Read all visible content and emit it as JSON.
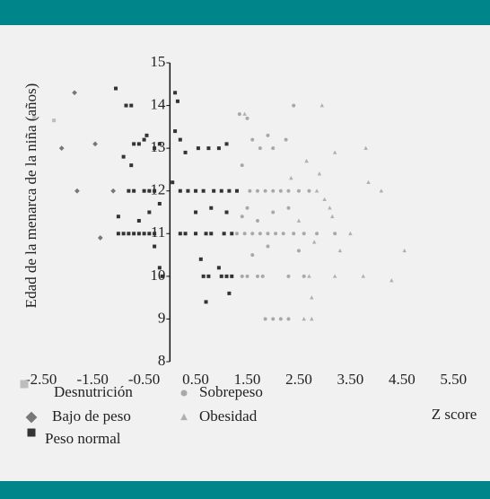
{
  "chart_data": {
    "type": "scatter",
    "y_label": "Edad de la menarca de la niña (años)",
    "x_label": "Z score",
    "xlim": [
      -3,
      6
    ],
    "ylim": [
      8,
      15
    ],
    "xticks": [
      {
        "value": -2.5,
        "label": "-2.50"
      },
      {
        "value": -1.5,
        "label": "-1.50"
      },
      {
        "value": -0.5,
        "label": "-0.50"
      },
      {
        "value": 0.5,
        "label": "0.50"
      },
      {
        "value": 1.5,
        "label": "1.50"
      },
      {
        "value": 2.5,
        "label": "2.50"
      },
      {
        "value": 3.5,
        "label": "3.50"
      },
      {
        "value": 4.5,
        "label": "4.50"
      },
      {
        "value": 5.5,
        "label": "5.50"
      }
    ],
    "yticks": [
      8,
      9,
      10,
      11,
      12,
      13,
      14,
      15
    ],
    "series": [
      {
        "name": "Desnutrición",
        "color": "#bdbdbd",
        "marker": "square",
        "x": [
          -2.63,
          -2.25
        ],
        "y": [
          13.72,
          13.65
        ]
      },
      {
        "name": "Bajo de peso",
        "color": "#777777",
        "marker": "diamond",
        "x": [
          -1.85,
          -1.45,
          -1.8,
          -1.1,
          -1.35,
          -2.1
        ],
        "y": [
          14.3,
          13.1,
          12.0,
          12.0,
          10.9,
          13.0
        ]
      },
      {
        "name": "Peso normal",
        "color": "#333333",
        "marker": "square",
        "x": [
          -0.85,
          -0.75,
          0.1,
          0.15,
          -1.05,
          -0.7,
          -0.6,
          -0.5,
          -0.3,
          -0.2,
          0.2,
          0.3,
          0.55,
          0.75,
          0.95,
          1.1,
          -0.9,
          -0.75,
          0.1,
          -0.45,
          -0.8,
          -0.7,
          -0.5,
          -0.4,
          -0.3,
          0.2,
          0.35,
          0.5,
          0.65,
          0.85,
          1.0,
          1.15,
          1.3,
          0.05,
          -0.2,
          0.5,
          0.8,
          1.1,
          -0.4,
          -0.6,
          -1.0,
          -0.9,
          -0.8,
          -0.7,
          -0.6,
          -0.5,
          -0.4,
          -0.3,
          0.2,
          0.3,
          0.5,
          0.7,
          0.8,
          1.05,
          1.2,
          -1.0,
          -0.3,
          -0.2,
          0.6,
          0.65,
          0.75,
          1.0,
          1.1,
          1.2,
          0.95,
          -0.15,
          0.7,
          1.15
        ],
        "y": [
          14.0,
          14.0,
          14.3,
          14.1,
          14.4,
          13.1,
          13.1,
          13.2,
          13.0,
          13.1,
          13.2,
          12.9,
          13.0,
          13.0,
          13.0,
          13.1,
          12.8,
          12.6,
          13.4,
          13.3,
          12.0,
          12.0,
          12.0,
          12.0,
          12.0,
          12.0,
          12.0,
          12.0,
          12.0,
          12.0,
          12.0,
          12.0,
          12.0,
          12.2,
          11.7,
          11.5,
          11.6,
          11.5,
          11.5,
          11.3,
          11.0,
          11.0,
          11.0,
          11.0,
          11.0,
          11.0,
          11.0,
          11.0,
          11.0,
          11.0,
          11.0,
          11.0,
          11.0,
          11.0,
          11.0,
          11.4,
          10.7,
          10.2,
          10.4,
          10.0,
          10.0,
          10.0,
          10.0,
          10.0,
          10.2,
          10.0,
          9.4,
          9.6
        ]
      },
      {
        "name": "Sobrepeso",
        "color": "#a8a8a8",
        "marker": "circle",
        "x": [
          1.35,
          1.5,
          1.75,
          2.0,
          1.6,
          1.9,
          2.25,
          2.4,
          1.4,
          1.55,
          1.7,
          1.85,
          2.0,
          2.15,
          2.3,
          2.5,
          2.7,
          1.4,
          1.5,
          1.7,
          2.0,
          2.3,
          1.3,
          1.45,
          1.6,
          1.75,
          1.9,
          2.05,
          2.2,
          2.4,
          2.6,
          2.85,
          3.2,
          1.6,
          1.9,
          2.5,
          1.4,
          1.5,
          1.7,
          1.8,
          2.3,
          2.6,
          1.85,
          2.0,
          2.15,
          2.3
        ],
        "y": [
          13.8,
          13.7,
          13.0,
          13.0,
          13.2,
          13.3,
          13.2,
          14.0,
          12.6,
          12.0,
          12.0,
          12.0,
          12.0,
          12.0,
          12.0,
          12.0,
          12.0,
          11.4,
          11.6,
          11.3,
          11.5,
          11.6,
          11.0,
          11.0,
          11.0,
          11.0,
          11.0,
          11.0,
          11.0,
          11.0,
          11.0,
          11.0,
          11.0,
          10.5,
          10.7,
          10.6,
          10.0,
          10.0,
          10.0,
          10.0,
          10.0,
          10.0,
          9.0,
          9.0,
          9.0,
          9.0
        ]
      },
      {
        "name": "Obesidad",
        "color": "#b0b0b0",
        "marker": "triangle",
        "x": [
          1.45,
          2.95,
          3.2,
          2.9,
          3.85,
          4.1,
          3.8,
          2.65,
          2.85,
          3.0,
          3.15,
          2.5,
          2.8,
          3.3,
          2.7,
          3.2,
          3.75,
          4.3,
          4.55,
          2.75,
          2.6,
          2.75,
          3.1,
          3.5,
          2.35
        ],
        "y": [
          13.8,
          14.0,
          12.9,
          12.4,
          12.2,
          12.0,
          13.0,
          12.7,
          12.0,
          11.8,
          11.4,
          11.3,
          10.8,
          10.6,
          10.0,
          10.0,
          10.0,
          9.9,
          10.6,
          9.5,
          9.0,
          9.0,
          11.6,
          11.0,
          12.3
        ]
      }
    ]
  }
}
